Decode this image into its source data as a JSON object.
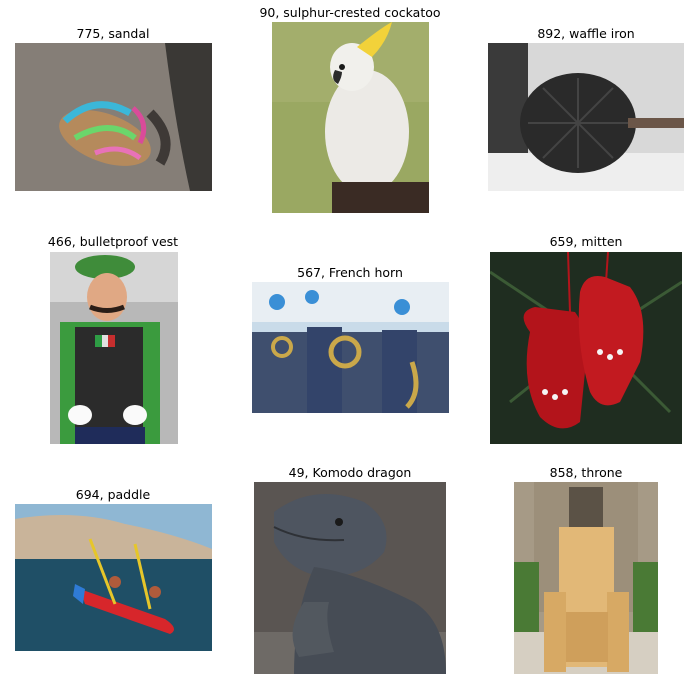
{
  "grid": {
    "items": [
      {
        "label": "775, sandal"
      },
      {
        "label": "90, sulphur-crested cockatoo"
      },
      {
        "label": "892, waffle iron"
      },
      {
        "label": "466, bulletproof vest"
      },
      {
        "label": "567, French horn"
      },
      {
        "label": "659, mitten"
      },
      {
        "label": "694, paddle"
      },
      {
        "label": "49, Komodo dragon"
      },
      {
        "label": "858, throne"
      }
    ]
  }
}
